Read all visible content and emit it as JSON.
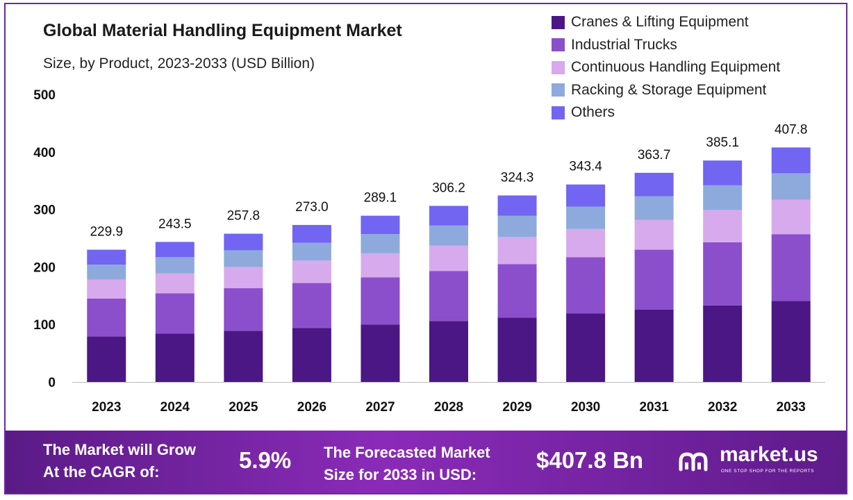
{
  "chart_data": {
    "type": "bar",
    "stacked": true,
    "title": "Global Material Handling Equipment Market",
    "subtitle": "Size, by Product, 2023-2033 (USD Billion)",
    "categories": [
      "2023",
      "2024",
      "2025",
      "2026",
      "2027",
      "2028",
      "2029",
      "2030",
      "2031",
      "2032",
      "2033"
    ],
    "totals": [
      229.9,
      243.5,
      257.8,
      273.0,
      289.1,
      306.2,
      324.3,
      343.4,
      363.7,
      385.1,
      407.8
    ],
    "total_labels": [
      "229.9",
      "243.5",
      "257.8",
      "273.0",
      "289.1",
      "306.2",
      "324.3",
      "343.4",
      "363.7",
      "385.1",
      "407.8"
    ],
    "series": [
      {
        "name": "Cranes & Lifting Equipment",
        "color": "#4b1784",
        "values": [
          79,
          84,
          89,
          94,
          100,
          106,
          112,
          119,
          126,
          133,
          141
        ]
      },
      {
        "name": "Industrial Trucks",
        "color": "#8b4fcc",
        "values": [
          66,
          70,
          74,
          78,
          82,
          87,
          93,
          98,
          104,
          110,
          116
        ]
      },
      {
        "name": "Continuous Handling Equipment",
        "color": "#d6aaec",
        "values": [
          33,
          35,
          37,
          39,
          42,
          44,
          47,
          49,
          52,
          56,
          60
        ]
      },
      {
        "name": "Racking & Storage Equipment",
        "color": "#8eaadc",
        "values": [
          26,
          28,
          29,
          31,
          33,
          35,
          37,
          39,
          41,
          43,
          46
        ]
      },
      {
        "name": "Others",
        "color": "#7165f2",
        "values": [
          26,
          26.5,
          28.8,
          31,
          32.1,
          34.2,
          35.3,
          38.4,
          40.7,
          43.1,
          44.8
        ]
      }
    ],
    "y_ticks": [
      0,
      100,
      200,
      300,
      400,
      500
    ],
    "ylim": [
      0,
      500
    ],
    "grid": false,
    "legend_position": "top-right"
  },
  "footer": {
    "cagr_text_line1": "The Market will Grow",
    "cagr_text_line2": "At the CAGR of:",
    "cagr_value": "5.9%",
    "forecast_text_line1": "The Forecasted Market",
    "forecast_text_line2": "Size for 2033 in USD:",
    "forecast_value": "$407.8 Bn",
    "brand": "market.us",
    "tagline": "ONE STOP SHOP FOR THE REPORTS",
    "logo_icon": "market-us-logo-icon"
  }
}
